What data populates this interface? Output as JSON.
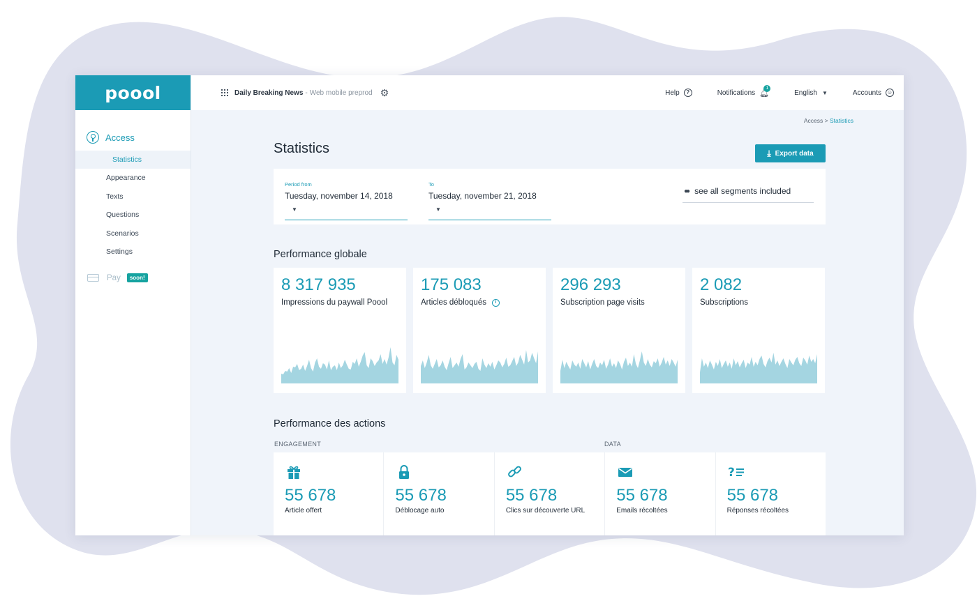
{
  "brand": {
    "logo_text": "poool",
    "accent": "#1b9bb5",
    "success": "#16a3a0",
    "spark_fill": "#a4d5e1"
  },
  "sidebar": {
    "section": {
      "label": "Access",
      "icon": "keyhole-icon"
    },
    "items": [
      {
        "label": "Statistics",
        "active": true
      },
      {
        "label": "Appearance"
      },
      {
        "label": "Texts"
      },
      {
        "label": "Questions"
      },
      {
        "label": "Scenarios"
      },
      {
        "label": "Settings"
      }
    ],
    "pay": {
      "label": "Pay",
      "badge": "soon!",
      "icon": "credit-card-icon"
    }
  },
  "header": {
    "app_name": "Daily Breaking News",
    "separator": "-",
    "app_env": "Web mobile preprod",
    "help_label": "Help",
    "notifications_label": "Notifications",
    "notifications_count": "1",
    "language_label": "English",
    "accounts_label": "Accounts"
  },
  "breadcrumb": {
    "parent": "Access",
    "sep": ">",
    "current": "Statistics"
  },
  "page": {
    "title": "Statistics",
    "export_label": "Export data"
  },
  "filters": {
    "from_label": "Period from",
    "from_value": "Tuesday, november 14, 2018",
    "to_label": "To",
    "to_value": "Tuesday, november 21, 2018",
    "segments_label": "see all segments included"
  },
  "performance_globale": {
    "title": "Performance globale",
    "cards": [
      {
        "value": "8 317 935",
        "label": "Impressions du paywall Poool",
        "info": false,
        "spark": [
          14,
          13,
          18,
          17,
          22,
          15,
          24,
          23,
          28,
          19,
          21,
          27,
          18,
          25,
          34,
          22,
          17,
          30,
          36,
          24,
          21,
          29,
          27,
          20,
          33,
          19,
          24,
          26,
          19,
          30,
          22,
          26,
          34,
          27,
          21,
          20,
          31,
          28,
          36,
          24,
          31,
          40,
          45,
          26,
          22,
          36,
          32,
          25,
          30,
          33,
          42,
          28,
          35,
          27,
          37,
          52,
          30,
          26,
          41,
          34
        ]
      },
      {
        "value": "175 083",
        "label": "Articles débloqués",
        "info": true,
        "spark": [
          25,
          33,
          22,
          30,
          41,
          26,
          21,
          28,
          35,
          23,
          26,
          33,
          24,
          19,
          29,
          38,
          22,
          26,
          30,
          24,
          35,
          42,
          20,
          23,
          30,
          26,
          22,
          28,
          31,
          21,
          18,
          36,
          27,
          22,
          29,
          24,
          31,
          20,
          26,
          33,
          30,
          23,
          28,
          37,
          24,
          26,
          32,
          38,
          25,
          30,
          41,
          34,
          27,
          48,
          30,
          33,
          44,
          36,
          29,
          46
        ]
      },
      {
        "value": "296 293",
        "label": "Subscription page visits",
        "info": false,
        "spark": [
          18,
          34,
          22,
          31,
          25,
          20,
          33,
          27,
          24,
          30,
          21,
          35,
          29,
          23,
          32,
          20,
          28,
          35,
          25,
          22,
          30,
          26,
          34,
          21,
          27,
          36,
          24,
          29,
          22,
          33,
          28,
          20,
          31,
          37,
          25,
          30,
          24,
          42,
          28,
          22,
          33,
          46,
          30,
          25,
          35,
          27,
          23,
          32,
          29,
          36,
          24,
          30,
          38,
          27,
          33,
          25,
          35,
          30,
          24,
          34
        ]
      },
      {
        "value": "2 082",
        "label": "Subscriptions",
        "info": false,
        "spark": [
          16,
          36,
          24,
          30,
          22,
          33,
          27,
          20,
          31,
          25,
          35,
          22,
          28,
          33,
          24,
          30,
          21,
          36,
          26,
          32,
          23,
          29,
          34,
          22,
          30,
          27,
          38,
          24,
          31,
          26,
          35,
          40,
          28,
          23,
          32,
          37,
          30,
          44,
          27,
          33,
          25,
          31,
          36,
          28,
          22,
          35,
          30,
          26,
          34,
          38,
          29,
          25,
          37,
          33,
          27,
          40,
          31,
          35,
          29,
          42
        ]
      }
    ]
  },
  "performance_actions": {
    "title": "Performance des actions",
    "engagement_label": "ENGAGEMENT",
    "data_label": "DATA",
    "items": [
      {
        "icon": "gift-icon",
        "value": "55 678",
        "label": "Article offert"
      },
      {
        "icon": "lock-icon",
        "value": "55 678",
        "label": "Déblocage auto"
      },
      {
        "icon": "link-icon",
        "value": "55 678",
        "label": "Clics sur découverte URL"
      },
      {
        "icon": "envelope-icon",
        "value": "55 678",
        "label": "Emails récoltées"
      },
      {
        "icon": "question-list-icon",
        "value": "55 678",
        "label": "Réponses récoltées"
      }
    ]
  }
}
